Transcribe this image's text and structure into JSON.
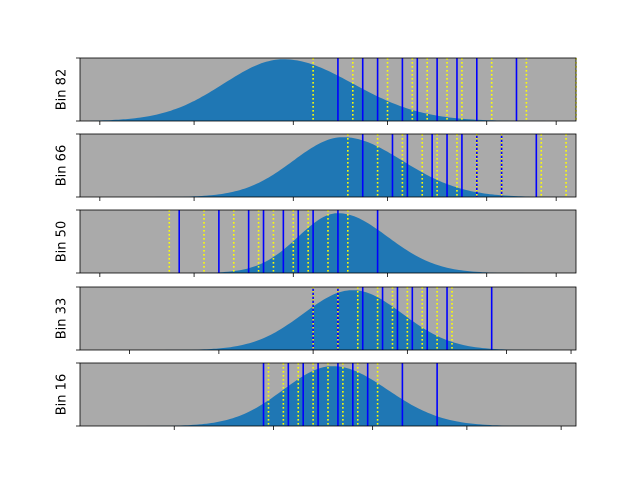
{
  "colors": {
    "panel_bg": "#aaaaaa",
    "density_fill": "#1f77b4",
    "solid_line": "#0000ff",
    "dotted_line": "#ffff00"
  },
  "chart_data": [
    {
      "type": "area",
      "ylabel": "Bin 82",
      "xlim": [
        0,
        1
      ],
      "density": {
        "center": 0.41,
        "sigma_left": 0.12,
        "sigma_right": 0.14,
        "peak": 0.98
      },
      "solid_lines": [
        0.52,
        0.57,
        0.6,
        0.65,
        0.68,
        0.72,
        0.76,
        0.8,
        0.88
      ],
      "dotted_lines": [
        0.47,
        0.55,
        0.62,
        0.67,
        0.7,
        0.74,
        0.77,
        0.83,
        0.9,
        1.0
      ]
    },
    {
      "type": "area",
      "ylabel": "Bin 66",
      "xlim": [
        0,
        1
      ],
      "density": {
        "center": 0.53,
        "sigma_left": 0.1,
        "sigma_right": 0.12,
        "peak": 0.95
      },
      "solid_lines": [
        0.57,
        0.63,
        0.66,
        0.71,
        0.74,
        0.77,
        0.8,
        0.85,
        0.92
      ],
      "dotted_lines": [
        0.54,
        0.6,
        0.65,
        0.69,
        0.72,
        0.76,
        0.8,
        0.85,
        0.93,
        0.98
      ]
    },
    {
      "type": "area",
      "ylabel": "Bin 50",
      "xlim": [
        0,
        1
      ],
      "density": {
        "center": 0.52,
        "sigma_left": 0.08,
        "sigma_right": 0.1,
        "peak": 0.95
      },
      "solid_lines": [
        0.2,
        0.28,
        0.34,
        0.37,
        0.41,
        0.44,
        0.47,
        0.52,
        0.6
      ],
      "dotted_lines": [
        0.18,
        0.25,
        0.31,
        0.36,
        0.39,
        0.43,
        0.46,
        0.5,
        0.54
      ]
    },
    {
      "type": "area",
      "ylabel": "Bin 33",
      "xlim": [
        0,
        1
      ],
      "density": {
        "center": 0.55,
        "sigma_left": 0.1,
        "sigma_right": 0.1,
        "peak": 0.95
      },
      "solid_lines": [
        0.47,
        0.52,
        0.57,
        0.61,
        0.64,
        0.67,
        0.7,
        0.74,
        0.83
      ],
      "dotted_lines": [
        0.47,
        0.52,
        0.56,
        0.6,
        0.63,
        0.66,
        0.69,
        0.72,
        0.75
      ]
    },
    {
      "type": "area",
      "ylabel": "Bin 16",
      "xlim": [
        0,
        1
      ],
      "density": {
        "center": 0.51,
        "sigma_left": 0.1,
        "sigma_right": 0.11,
        "peak": 0.95
      },
      "solid_lines": [
        0.37,
        0.42,
        0.45,
        0.48,
        0.52,
        0.55,
        0.58,
        0.65,
        0.72
      ],
      "dotted_lines": [
        0.38,
        0.41,
        0.44,
        0.47,
        0.5,
        0.53,
        0.56,
        0.6
      ]
    }
  ]
}
